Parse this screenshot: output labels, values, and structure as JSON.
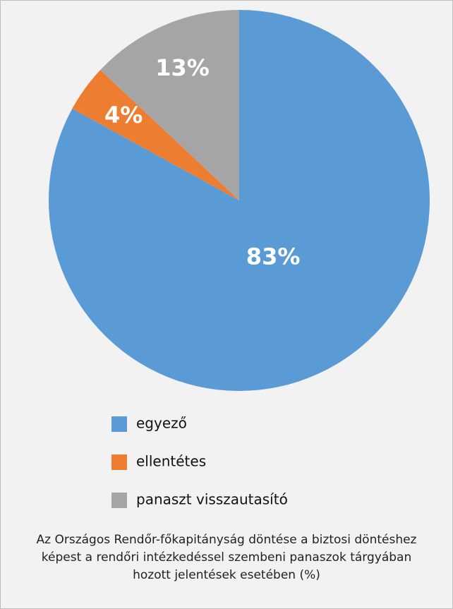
{
  "chart_data": {
    "type": "pie",
    "caption": "Az Országos Rendőr-főkapitányság döntése a biztosi döntéshez képest a rendőri intézkedéssel szembeni panaszok tárgyában hozott jelentések esetében (%)",
    "categories": [
      "egyező",
      "ellentétes",
      "panaszt visszautasító"
    ],
    "values": [
      83,
      4,
      13
    ],
    "value_labels": [
      "83%",
      "4%",
      "13%"
    ],
    "colors": [
      "#5b9bd5",
      "#ed7d31",
      "#a5a5a5"
    ]
  }
}
